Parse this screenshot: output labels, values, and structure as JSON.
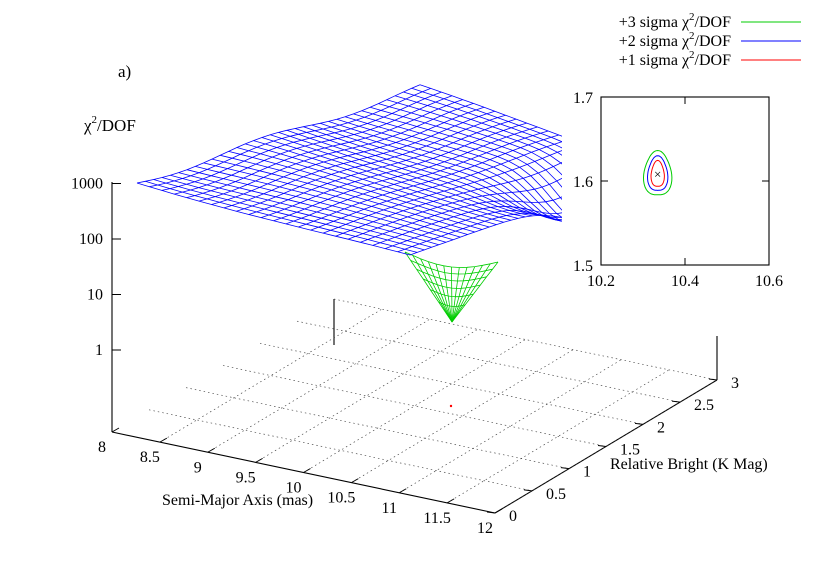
{
  "panel_label": "a)",
  "chart_data": [
    {
      "type": "surface",
      "title": "",
      "zlabel": "χ²/DOF",
      "zlabel_base": "χ",
      "zlabel_sup": "2",
      "zlabel_rest": "/DOF",
      "zscale": "log",
      "ztick_labels": [
        "1",
        "10",
        "100",
        "1000"
      ],
      "xlabel": "Semi-Major Axis (mas)",
      "xlim": [
        8,
        12
      ],
      "xtick_labels": [
        "8",
        "8.5",
        "9",
        "9.5",
        "10",
        "10.5",
        "11",
        "11.5",
        "12"
      ],
      "ylabel": "Relative Bright (K Mag)",
      "ylim": [
        0,
        3
      ],
      "ytick_labels": [
        "0",
        "0.5",
        "1",
        "1.5",
        "2",
        "2.5",
        "3"
      ],
      "grid": true,
      "surface_color": "#0000ff",
      "lower_surface_color": "#00cc00",
      "min_marker_color": "#ff0000"
    },
    {
      "type": "contour",
      "title": "",
      "xlim": [
        10.2,
        10.6
      ],
      "ylim": [
        1.5,
        1.7
      ],
      "xtick_labels": [
        "10.2",
        "10.4",
        "10.6"
      ],
      "ytick_labels": [
        "1.5",
        "1.6",
        "1.7"
      ],
      "best_fit": {
        "x": 10.335,
        "y": 1.608,
        "marker": "×",
        "color": "#0000ff"
      },
      "legend_position": "top-right",
      "series": [
        {
          "name": "+3 sigma χ²/DOF",
          "name_pre": "+3 sigma χ",
          "name_post": "/DOF",
          "color": "#00cc00",
          "cx": 10.335,
          "cy": 1.608,
          "rx": 0.032,
          "ry": 0.0275
        },
        {
          "name": "+2 sigma χ²/DOF",
          "name_pre": "+2 sigma χ",
          "name_post": "/DOF",
          "color": "#0000ff",
          "cx": 10.335,
          "cy": 1.608,
          "rx": 0.023,
          "ry": 0.0215
        },
        {
          "name": "+1 sigma χ²/DOF",
          "name_pre": "+1 sigma χ",
          "name_post": "/DOF",
          "color": "#ff0000",
          "cx": 10.335,
          "cy": 1.608,
          "rx": 0.015,
          "ry": 0.016
        }
      ]
    }
  ]
}
